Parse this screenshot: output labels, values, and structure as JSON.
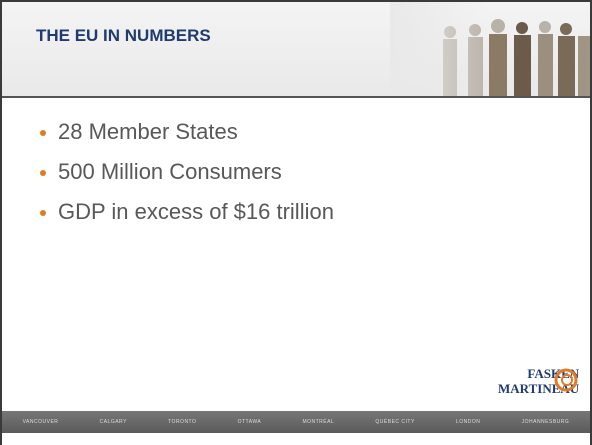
{
  "header": {
    "title": "THE EU IN NUMBERS"
  },
  "bullets": [
    "28 Member States",
    "500 Million Consumers",
    "GDP in excess of $16 trillion"
  ],
  "logo": {
    "line1": "FASKEN",
    "line2": "MARTINEAU"
  },
  "footer": {
    "cities": [
      "VANCOUVER",
      "CALGARY",
      "TORONTO",
      "OTTAWA",
      "MONTRÉAL",
      "QUÉBEC CITY",
      "LONDON",
      "JOHANNESBURG"
    ]
  }
}
